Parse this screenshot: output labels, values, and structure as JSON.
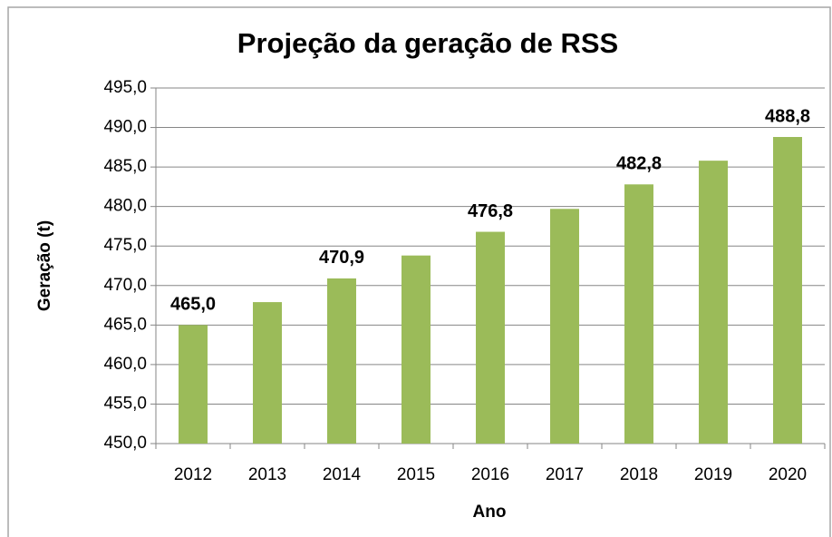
{
  "chart_data": {
    "type": "bar",
    "title": "Projeção da geração de RSS",
    "x_label": "Ano",
    "y_label": "Geração (t)",
    "categories": [
      "2012",
      "2013",
      "2014",
      "2015",
      "2016",
      "2017",
      "2018",
      "2019",
      "2020"
    ],
    "values": [
      465.0,
      467.9,
      470.9,
      473.8,
      476.8,
      479.7,
      482.8,
      485.8,
      488.8
    ],
    "value_labels": [
      "465,0",
      null,
      "470,9",
      null,
      "476,8",
      null,
      "482,8",
      null,
      "488,8"
    ],
    "color": "#9bbb59",
    "ylim": [
      450,
      495
    ],
    "yticks": [
      {
        "value": 450,
        "label": "450,0"
      },
      {
        "value": 455,
        "label": "455,0"
      },
      {
        "value": 460,
        "label": "460,0"
      },
      {
        "value": 465,
        "label": "465,0"
      },
      {
        "value": 470,
        "label": "470,0"
      },
      {
        "value": 475,
        "label": "475,0"
      },
      {
        "value": 480,
        "label": "480,0"
      },
      {
        "value": 485,
        "label": "485,0"
      },
      {
        "value": 490,
        "label": "490,0"
      },
      {
        "value": 495,
        "label": "495,0"
      }
    ],
    "grid": true
  }
}
